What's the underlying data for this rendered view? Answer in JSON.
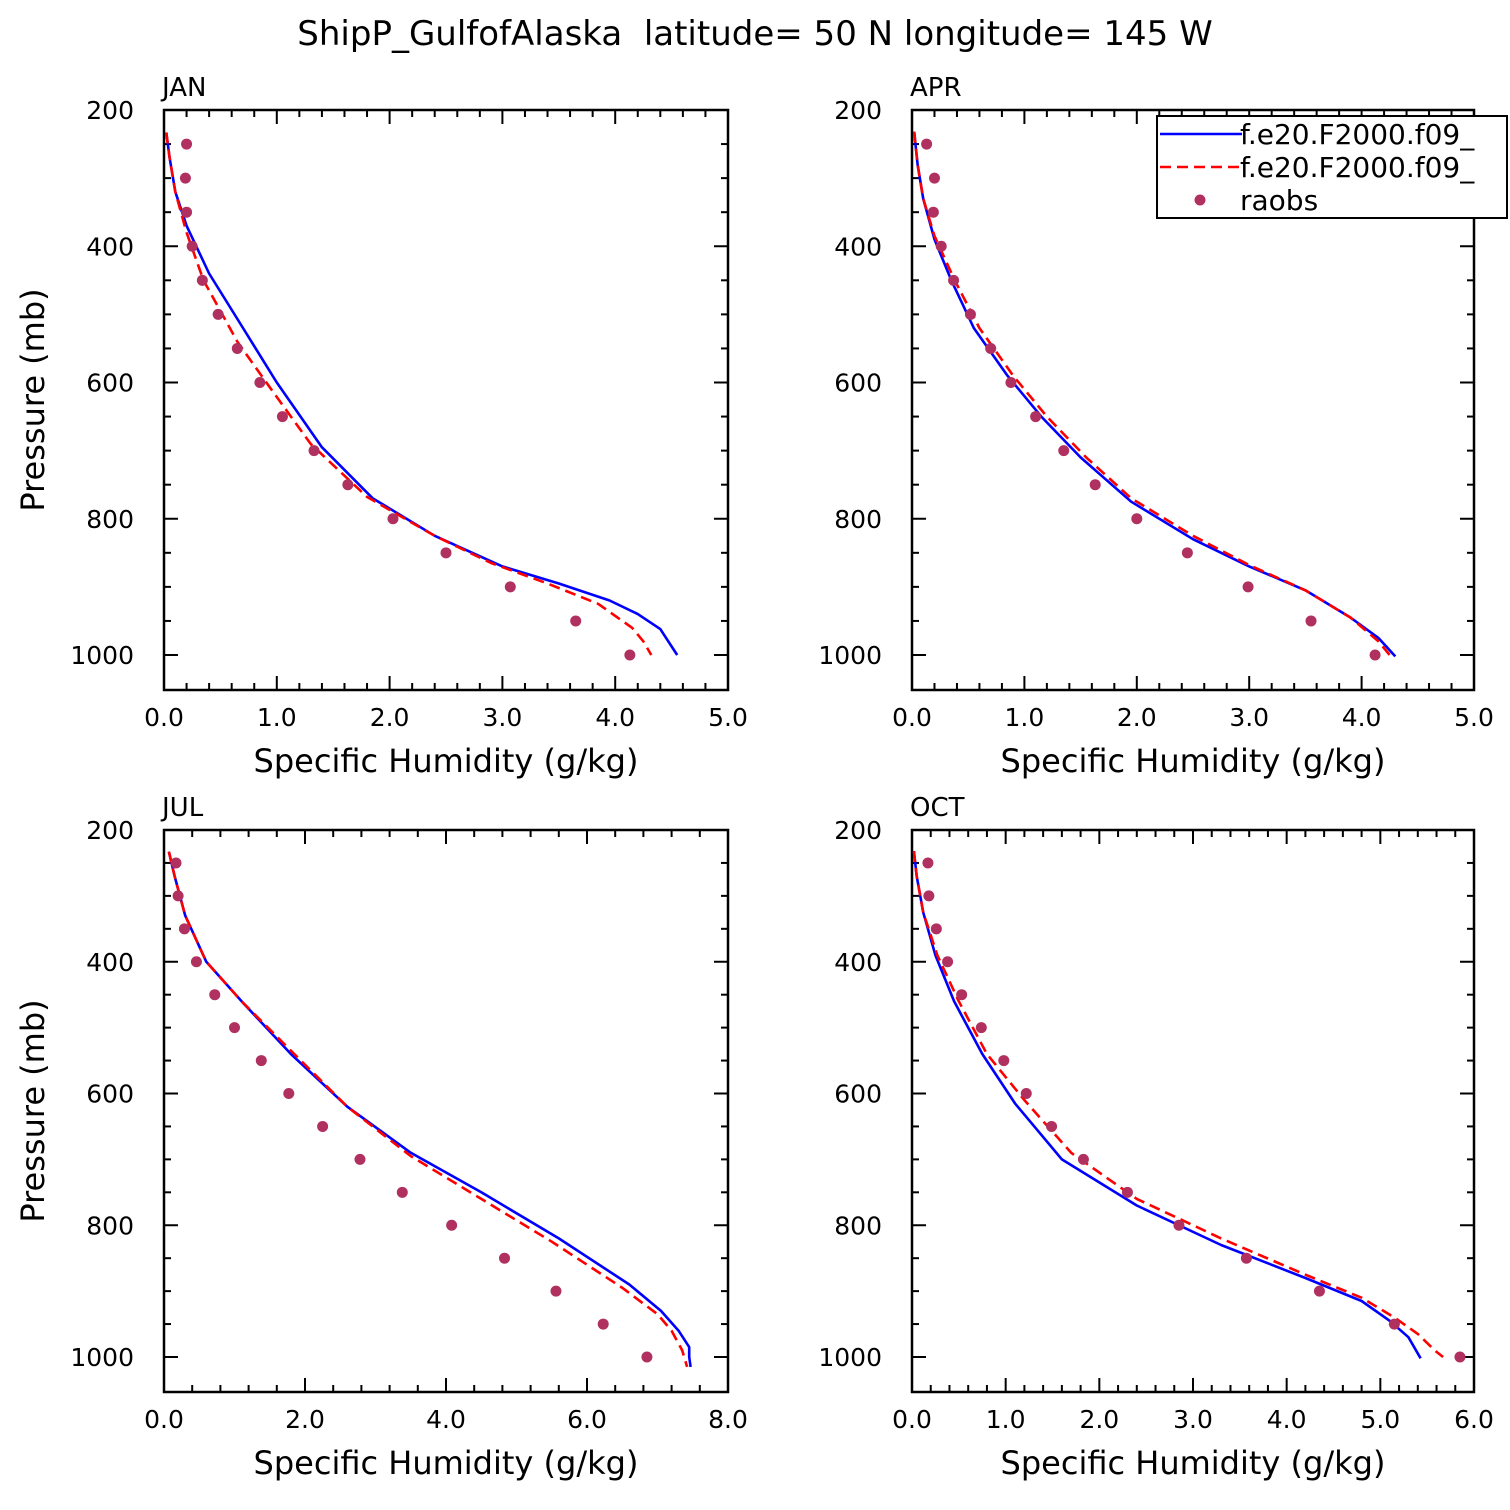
{
  "title": "ShipP_GulfofAlaska  latitude= 50 N longitude= 145 W",
  "colors": {
    "model1": "#0000ff",
    "model2": "#ff0000",
    "obs": "#b03060"
  },
  "legend": {
    "position": "top-right of APR panel",
    "entries": [
      {
        "label": "f.e20.F2000.f09_",
        "style": "solid",
        "color": "#0000ff"
      },
      {
        "label": "f.e20.F2000.f09_",
        "style": "dashed",
        "color": "#ff0000"
      },
      {
        "label": "raobs",
        "style": "dot",
        "color": "#b03060"
      }
    ]
  },
  "chart_data": [
    {
      "type": "line",
      "panel": "JAN",
      "xlabel": "Specific Humidity (g/kg)",
      "ylabel": "Pressure (mb)",
      "xlim": [
        0,
        5
      ],
      "ylim": [
        200,
        1025
      ],
      "y_inverted": true,
      "xticks": [
        "0.0",
        "1.0",
        "2.0",
        "3.0",
        "4.0",
        "5.0"
      ],
      "yticks": [
        "200",
        "400",
        "600",
        "800",
        "1000"
      ],
      "series": [
        {
          "name": "f.e20.F2000.f09_",
          "style": "solid",
          "color": "#0000ff",
          "points": [
            [
              0.02,
              233
            ],
            [
              0.05,
              270
            ],
            [
              0.1,
              320
            ],
            [
              0.2,
              370
            ],
            [
              0.4,
              440
            ],
            [
              0.7,
              520
            ],
            [
              1.0,
              600
            ],
            [
              1.4,
              695
            ],
            [
              1.85,
              770
            ],
            [
              2.4,
              825
            ],
            [
              3.0,
              870
            ],
            [
              3.5,
              895
            ],
            [
              3.95,
              920
            ],
            [
              4.2,
              940
            ],
            [
              4.4,
              962
            ],
            [
              4.55,
              1000
            ]
          ]
        },
        {
          "name": "f.e20.F2000.f09_",
          "style": "dashed",
          "color": "#ff0000",
          "points": [
            [
              0.02,
              233
            ],
            [
              0.05,
              270
            ],
            [
              0.1,
              320
            ],
            [
              0.2,
              380
            ],
            [
              0.35,
              450
            ],
            [
              0.65,
              540
            ],
            [
              0.95,
              610
            ],
            [
              1.3,
              690
            ],
            [
              1.8,
              768
            ],
            [
              2.4,
              825
            ],
            [
              2.9,
              865
            ],
            [
              3.4,
              895
            ],
            [
              3.85,
              925
            ],
            [
              4.15,
              960
            ],
            [
              4.25,
              980
            ],
            [
              4.32,
              1000
            ]
          ]
        },
        {
          "name": "raobs",
          "style": "dot",
          "color": "#b03060",
          "points": [
            [
              0.2,
              250
            ],
            [
              0.19,
              300
            ],
            [
              0.2,
              350
            ],
            [
              0.25,
              400
            ],
            [
              0.34,
              450
            ],
            [
              0.48,
              500
            ],
            [
              0.65,
              550
            ],
            [
              0.85,
              600
            ],
            [
              1.05,
              650
            ],
            [
              1.33,
              700
            ],
            [
              1.63,
              750
            ],
            [
              2.03,
              800
            ],
            [
              2.5,
              850
            ],
            [
              3.07,
              900
            ],
            [
              3.65,
              950
            ],
            [
              4.13,
              1000
            ]
          ]
        }
      ]
    },
    {
      "type": "line",
      "panel": "APR",
      "xlabel": "Specific Humidity (g/kg)",
      "ylabel": "",
      "xlim": [
        0,
        5
      ],
      "ylim": [
        200,
        1025
      ],
      "y_inverted": true,
      "xticks": [
        "0.0",
        "1.0",
        "2.0",
        "3.0",
        "4.0",
        "5.0"
      ],
      "yticks": [
        "200",
        "400",
        "600",
        "800",
        "1000"
      ],
      "series": [
        {
          "name": "f.e20.F2000.f09_",
          "style": "solid",
          "color": "#0000ff",
          "points": [
            [
              0.02,
              232
            ],
            [
              0.05,
              280
            ],
            [
              0.1,
              330
            ],
            [
              0.2,
              390
            ],
            [
              0.35,
              450
            ],
            [
              0.55,
              520
            ],
            [
              0.85,
              590
            ],
            [
              1.15,
              650
            ],
            [
              1.5,
              710
            ],
            [
              1.95,
              775
            ],
            [
              2.5,
              830
            ],
            [
              3.0,
              870
            ],
            [
              3.5,
              905
            ],
            [
              3.9,
              945
            ],
            [
              4.15,
              975
            ],
            [
              4.3,
              1002
            ]
          ]
        },
        {
          "name": "f.e20.F2000.f09_",
          "style": "dashed",
          "color": "#ff0000",
          "points": [
            [
              0.02,
              232
            ],
            [
              0.05,
              280
            ],
            [
              0.1,
              330
            ],
            [
              0.2,
              385
            ],
            [
              0.38,
              450
            ],
            [
              0.6,
              520
            ],
            [
              0.9,
              590
            ],
            [
              1.2,
              650
            ],
            [
              1.55,
              710
            ],
            [
              1.95,
              770
            ],
            [
              2.5,
              825
            ],
            [
              3.0,
              868
            ],
            [
              3.5,
              905
            ],
            [
              3.9,
              945
            ],
            [
              4.15,
              980
            ],
            [
              4.25,
              1000
            ]
          ]
        },
        {
          "name": "raobs",
          "style": "dot",
          "color": "#b03060",
          "points": [
            [
              0.13,
              250
            ],
            [
              0.2,
              300
            ],
            [
              0.19,
              350
            ],
            [
              0.26,
              400
            ],
            [
              0.37,
              450
            ],
            [
              0.52,
              500
            ],
            [
              0.7,
              550
            ],
            [
              0.88,
              600
            ],
            [
              1.1,
              650
            ],
            [
              1.35,
              700
            ],
            [
              1.63,
              750
            ],
            [
              2.0,
              800
            ],
            [
              2.45,
              850
            ],
            [
              2.99,
              900
            ],
            [
              3.55,
              950
            ],
            [
              4.12,
              1000
            ]
          ]
        }
      ]
    },
    {
      "type": "line",
      "panel": "JUL",
      "xlabel": "Specific Humidity (g/kg)",
      "ylabel": "Pressure (mb)",
      "xlim": [
        0,
        8
      ],
      "ylim": [
        200,
        1025
      ],
      "y_inverted": true,
      "xticks": [
        "0.0",
        "2.0",
        "4.0",
        "6.0",
        "8.0"
      ],
      "yticks": [
        "200",
        "400",
        "600",
        "800",
        "1000"
      ],
      "series": [
        {
          "name": "f.e20.F2000.f09_",
          "style": "solid",
          "color": "#0000ff",
          "points": [
            [
              0.07,
              233
            ],
            [
              0.15,
              270
            ],
            [
              0.3,
              330
            ],
            [
              0.6,
              400
            ],
            [
              1.1,
              460
            ],
            [
              1.8,
              540
            ],
            [
              2.6,
              620
            ],
            [
              3.5,
              690
            ],
            [
              4.5,
              750
            ],
            [
              5.6,
              820
            ],
            [
              6.6,
              890
            ],
            [
              7.05,
              930
            ],
            [
              7.3,
              960
            ],
            [
              7.45,
              985
            ],
            [
              7.45,
              1000
            ],
            [
              7.47,
              1015
            ]
          ]
        },
        {
          "name": "f.e20.F2000.f09_",
          "style": "dashed",
          "color": "#ff0000",
          "points": [
            [
              0.07,
              233
            ],
            [
              0.15,
              270
            ],
            [
              0.3,
              330
            ],
            [
              0.6,
              400
            ],
            [
              1.1,
              460
            ],
            [
              1.8,
              535
            ],
            [
              2.6,
              620
            ],
            [
              3.5,
              695
            ],
            [
              4.5,
              760
            ],
            [
              5.5,
              825
            ],
            [
              6.5,
              895
            ],
            [
              7.0,
              935
            ],
            [
              7.2,
              960
            ],
            [
              7.35,
              990
            ],
            [
              7.42,
              1015
            ]
          ]
        },
        {
          "name": "raobs",
          "style": "dot",
          "color": "#b03060",
          "points": [
            [
              0.17,
              250
            ],
            [
              0.2,
              300
            ],
            [
              0.29,
              350
            ],
            [
              0.46,
              400
            ],
            [
              0.72,
              450
            ],
            [
              1.0,
              500
            ],
            [
              1.38,
              550
            ],
            [
              1.77,
              600
            ],
            [
              2.25,
              650
            ],
            [
              2.78,
              700
            ],
            [
              3.38,
              750
            ],
            [
              4.08,
              800
            ],
            [
              4.83,
              850
            ],
            [
              5.56,
              900
            ],
            [
              6.23,
              950
            ],
            [
              6.85,
              1000
            ]
          ]
        }
      ]
    },
    {
      "type": "line",
      "panel": "OCT",
      "xlabel": "Specific Humidity (g/kg)",
      "ylabel": "",
      "xlim": [
        0,
        6
      ],
      "ylim": [
        200,
        1025
      ],
      "y_inverted": true,
      "xticks": [
        "0.0",
        "1.0",
        "2.0",
        "3.0",
        "4.0",
        "5.0",
        "6.0"
      ],
      "yticks": [
        "200",
        "400",
        "600",
        "800",
        "1000"
      ],
      "series": [
        {
          "name": "f.e20.F2000.f09_",
          "style": "solid",
          "color": "#0000ff",
          "points": [
            [
              0.02,
              232
            ],
            [
              0.05,
              270
            ],
            [
              0.12,
              325
            ],
            [
              0.25,
              390
            ],
            [
              0.45,
              460
            ],
            [
              0.75,
              540
            ],
            [
              1.1,
              615
            ],
            [
              1.6,
              700
            ],
            [
              2.4,
              770
            ],
            [
              3.3,
              830
            ],
            [
              4.2,
              880
            ],
            [
              4.8,
              915
            ],
            [
              5.1,
              945
            ],
            [
              5.3,
              970
            ],
            [
              5.43,
              1002
            ]
          ]
        },
        {
          "name": "f.e20.F2000.f09_",
          "style": "dashed",
          "color": "#ff0000",
          "points": [
            [
              0.02,
              232
            ],
            [
              0.05,
              270
            ],
            [
              0.12,
              325
            ],
            [
              0.27,
              390
            ],
            [
              0.5,
              460
            ],
            [
              0.8,
              540
            ],
            [
              1.2,
              610
            ],
            [
              1.7,
              690
            ],
            [
              2.4,
              760
            ],
            [
              3.3,
              820
            ],
            [
              4.2,
              875
            ],
            [
              4.8,
              910
            ],
            [
              5.15,
              940
            ],
            [
              5.4,
              965
            ],
            [
              5.58,
              990
            ],
            [
              5.67,
              1000
            ]
          ]
        },
        {
          "name": "raobs",
          "style": "dot",
          "color": "#b03060",
          "points": [
            [
              0.17,
              250
            ],
            [
              0.18,
              300
            ],
            [
              0.26,
              350
            ],
            [
              0.38,
              400
            ],
            [
              0.53,
              450
            ],
            [
              0.74,
              500
            ],
            [
              0.98,
              550
            ],
            [
              1.22,
              600
            ],
            [
              1.49,
              650
            ],
            [
              1.83,
              700
            ],
            [
              2.3,
              750
            ],
            [
              2.85,
              800
            ],
            [
              3.57,
              850
            ],
            [
              4.35,
              900
            ],
            [
              5.15,
              950
            ],
            [
              5.85,
              1000
            ]
          ]
        }
      ]
    }
  ]
}
